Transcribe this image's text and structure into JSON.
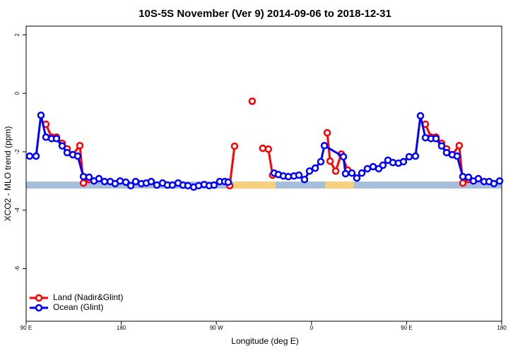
{
  "chart_data": {
    "type": "line",
    "title": "10S-5S November (Ver 9)   2014-09-06 to 2018-12-31",
    "xlabel": "Longitude (deg E)",
    "ylabel": "XCO2 - MLO trend (ppm)",
    "xlim": [
      90,
      540
    ],
    "ylim": [
      -7.8,
      2.3
    ],
    "xticks": [
      {
        "value": 90,
        "label": "90 E"
      },
      180,
      {
        "value": 270,
        "label": "90 W"
      },
      {
        "value": 360,
        "label": "0"
      },
      {
        "value": 450,
        "label": "90 E"
      },
      {
        "value": 540,
        "label": "180"
      }
    ],
    "yticks": [
      2,
      0,
      -2,
      -4,
      -6
    ],
    "band_ylim": [
      -3.26,
      -3.02
    ],
    "band_color": "#a7bedb",
    "land_color": "#f5d27a",
    "land_spans": [
      [
        286,
        326
      ],
      [
        373,
        400
      ]
    ],
    "legend": "bottomleft",
    "series": [
      {
        "name": "Land (Nadir&Glint)",
        "color": "#ff0000",
        "x": [
          108.7,
          114.1,
          118.7,
          124.1,
          128.8,
          134.1,
          140.8,
          144.2,
          149.5,
          200,
          282.6,
          287.2,
          295,
          303.9,
          308,
          313.9,
          319.2,
          323.2,
          345,
          374.9,
          377.6,
          382.9,
          388.2,
          394.3,
          420,
          467.8,
          473.1,
          477.8,
          483.1,
          487.8,
          493.2,
          499.8,
          503.2,
          508.5
        ],
        "values": [
          -1.06,
          -1.5,
          -1.5,
          -1.71,
          -1.9,
          -2.1,
          -1.79,
          -3.07,
          -2.95,
          null,
          -3.16,
          -1.81,
          null,
          -0.27,
          null,
          -1.88,
          -1.91,
          -2.8,
          null,
          -1.35,
          -2.32,
          -2.66,
          -2.08,
          -2.63,
          null,
          -1.06,
          -1.5,
          -1.5,
          -1.71,
          -1.9,
          -2.1,
          -1.79,
          -3.07,
          -2.95
        ]
      },
      {
        "name": "Ocean (Glint)",
        "color": "#0000ff",
        "x": [
          93.3,
          99.4,
          104.0,
          108.7,
          114.1,
          118.7,
          124.1,
          128.8,
          134.1,
          138.8,
          144.2,
          149.5,
          154.2,
          158.9,
          164.2,
          169.6,
          174.2,
          178.9,
          184.3,
          189.0,
          193.6,
          199.0,
          203.7,
          208.3,
          213.7,
          219.1,
          223.7,
          228.4,
          233.8,
          238.4,
          243.1,
          248.5,
          253.2,
          258.5,
          263.2,
          267.8,
          273.2,
          277.9,
          281.2,
          300,
          324.7,
          328.7,
          333.4,
          338.1,
          343.4,
          348.1,
          353.4,
          358.1,
          363.5,
          368.8,
          372.2,
          390.2,
          392.2,
          398.2,
          402.9,
          407.6,
          412.9,
          418.3,
          423.6,
          427.6,
          432.3,
          437.0,
          442.3,
          447.0,
          452.4,
          458.4,
          463.1,
          467.8,
          473.1,
          477.8,
          483.1,
          487.8,
          493.2,
          497.8,
          503.2,
          508.5,
          513.2,
          517.9,
          523.3,
          528.0,
          532.6,
          538.0
        ],
        "values": [
          -2.15,
          -2.15,
          -0.75,
          -1.5,
          -1.55,
          -1.55,
          -1.8,
          -2.03,
          -2.1,
          -2.15,
          -2.85,
          -2.87,
          -3.0,
          -2.92,
          -3.02,
          -3.02,
          -3.09,
          -3.0,
          -3.04,
          -3.16,
          -3.02,
          -3.09,
          -3.07,
          -3.02,
          -3.14,
          -3.07,
          -3.14,
          -3.14,
          -3.07,
          -3.14,
          -3.16,
          -3.21,
          -3.16,
          -3.12,
          -3.16,
          -3.14,
          -3.02,
          -3.02,
          -3.04,
          null,
          -2.73,
          -2.78,
          -2.83,
          -2.85,
          -2.83,
          -2.8,
          -2.95,
          -2.66,
          -2.56,
          -2.34,
          -1.79,
          -2.17,
          -2.75,
          -2.73,
          -2.9,
          -2.73,
          -2.58,
          -2.51,
          -2.58,
          -2.46,
          -2.29,
          -2.37,
          -2.39,
          -2.34,
          -2.17,
          -2.15,
          -0.77,
          -1.52,
          -1.55,
          -1.55,
          -1.8,
          -2.03,
          -2.1,
          -2.15,
          -2.85,
          -2.87,
          -3.0,
          -2.92,
          -3.02,
          -3.02,
          -3.09,
          -3.0
        ]
      }
    ]
  }
}
